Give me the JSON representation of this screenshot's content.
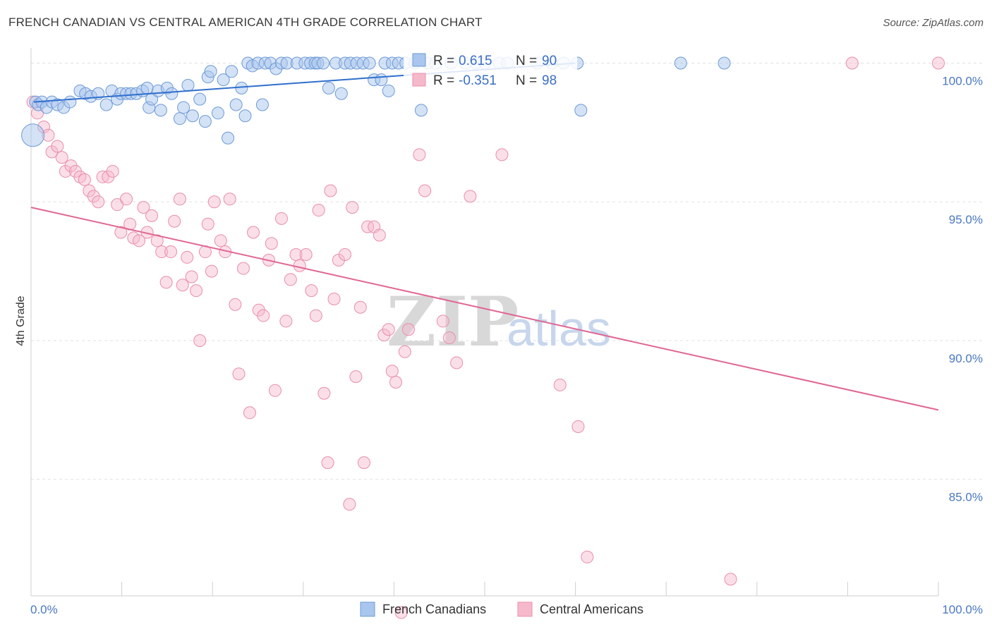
{
  "header": {
    "title": "FRENCH CANADIAN VS CENTRAL AMERICAN 4TH GRADE CORRELATION CHART",
    "source": "Source: ZipAtlas.com"
  },
  "colors": {
    "blue_fill": "#a9c6ee",
    "blue_stroke": "#6d9ad6",
    "blue_line": "#2f6fcd",
    "pink_fill": "#f6b9cc",
    "pink_stroke": "#e88eab",
    "pink_line": "#e06693",
    "tick_color": "#4a78c0"
  },
  "watermark": {
    "zip": "ZIP",
    "atlas": "atlas"
  },
  "stats": {
    "blue": {
      "r_label": "R =",
      "r_value": "0.615",
      "n_label": "N =",
      "n_value": "90"
    },
    "pink": {
      "r_label": "R =",
      "r_value": "-0.351",
      "n_label": "N =",
      "n_value": "98"
    }
  },
  "legend": {
    "items": [
      "French Canadians",
      "Central Americans"
    ]
  },
  "chart_data": {
    "type": "scatter",
    "title": "FRENCH CANADIAN VS CENTRAL AMERICAN 4TH GRADE CORRELATION CHART",
    "xlabel": "",
    "ylabel": "4th Grade",
    "xlim": [
      0,
      100
    ],
    "ylim": [
      80.8,
      100.8
    ],
    "x_tick_labels": [
      "0.0%",
      "100.0%"
    ],
    "y_ticks": [
      85,
      90,
      95,
      100
    ],
    "y_tick_labels": [
      "85.0%",
      "90.0%",
      "95.0%",
      "100.0%"
    ],
    "grid": true,
    "legend_position": "bottom-center",
    "series": [
      {
        "name": "French Canadians",
        "color": "#6d9ad6",
        "trend": {
          "x": [
            0.3,
            60
          ],
          "y": [
            98.6,
            100.0
          ]
        },
        "points": [
          [
            0.2,
            97.4
          ],
          [
            0.5,
            98.6
          ],
          [
            0.8,
            98.5
          ],
          [
            1.2,
            98.6
          ],
          [
            1.7,
            98.4
          ],
          [
            2.3,
            98.6
          ],
          [
            2.9,
            98.5
          ],
          [
            3.6,
            98.4
          ],
          [
            4.3,
            98.6
          ],
          [
            5.4,
            99.0
          ],
          [
            6.0,
            98.9
          ],
          [
            6.6,
            98.8
          ],
          [
            7.4,
            98.9
          ],
          [
            8.3,
            98.5
          ],
          [
            8.9,
            99.0
          ],
          [
            9.5,
            98.7
          ],
          [
            9.9,
            98.9
          ],
          [
            10.5,
            98.9
          ],
          [
            11.0,
            98.9
          ],
          [
            11.6,
            98.9
          ],
          [
            12.3,
            99.0
          ],
          [
            12.8,
            99.1
          ],
          [
            13.0,
            98.4
          ],
          [
            13.3,
            98.7
          ],
          [
            14.0,
            99.0
          ],
          [
            14.3,
            98.3
          ],
          [
            15.0,
            99.1
          ],
          [
            15.5,
            98.9
          ],
          [
            16.4,
            98.0
          ],
          [
            16.8,
            98.4
          ],
          [
            17.3,
            99.2
          ],
          [
            17.8,
            98.1
          ],
          [
            18.6,
            98.7
          ],
          [
            19.2,
            97.9
          ],
          [
            19.5,
            99.5
          ],
          [
            19.8,
            99.7
          ],
          [
            20.6,
            98.2
          ],
          [
            21.2,
            99.4
          ],
          [
            21.7,
            97.3
          ],
          [
            22.1,
            99.7
          ],
          [
            22.6,
            98.5
          ],
          [
            23.2,
            99.1
          ],
          [
            23.6,
            98.1
          ],
          [
            23.9,
            100.0
          ],
          [
            24.4,
            99.9
          ],
          [
            25.0,
            100.0
          ],
          [
            25.5,
            98.5
          ],
          [
            25.8,
            100.0
          ],
          [
            26.4,
            100.0
          ],
          [
            27.0,
            99.8
          ],
          [
            27.6,
            100.0
          ],
          [
            28.2,
            100.0
          ],
          [
            29.3,
            100.0
          ],
          [
            30.2,
            100.0
          ],
          [
            30.8,
            100.0
          ],
          [
            31.3,
            100.0
          ],
          [
            31.6,
            100.0
          ],
          [
            32.2,
            100.0
          ],
          [
            32.8,
            99.1
          ],
          [
            33.6,
            100.0
          ],
          [
            34.2,
            98.9
          ],
          [
            34.6,
            100.0
          ],
          [
            35.2,
            100.0
          ],
          [
            35.9,
            100.0
          ],
          [
            36.6,
            100.0
          ],
          [
            37.3,
            100.0
          ],
          [
            37.8,
            99.4
          ],
          [
            38.6,
            99.4
          ],
          [
            39.0,
            100.0
          ],
          [
            39.4,
            99.0
          ],
          [
            39.8,
            100.0
          ],
          [
            40.5,
            100.0
          ],
          [
            41.3,
            100.0
          ],
          [
            42.3,
            100.0
          ],
          [
            43.0,
            98.3
          ],
          [
            43.7,
            100.0
          ],
          [
            44.6,
            100.0
          ],
          [
            46.3,
            100.0
          ],
          [
            47.9,
            100.0
          ],
          [
            49.0,
            100.0
          ],
          [
            50.0,
            100.0
          ],
          [
            51.6,
            100.0
          ],
          [
            52.5,
            100.0
          ],
          [
            55.8,
            100.0
          ],
          [
            57.4,
            100.0
          ],
          [
            58.7,
            100.0
          ],
          [
            60.2,
            100.0
          ],
          [
            60.6,
            98.3
          ],
          [
            71.6,
            100.0
          ],
          [
            76.4,
            100.0
          ]
        ]
      },
      {
        "name": "Central Americans",
        "color": "#e88eab",
        "trend": {
          "x": [
            0,
            100
          ],
          "y": [
            94.8,
            87.5
          ]
        },
        "points": [
          [
            0.2,
            98.6
          ],
          [
            0.7,
            98.2
          ],
          [
            1.4,
            97.7
          ],
          [
            1.9,
            97.4
          ],
          [
            2.3,
            96.8
          ],
          [
            2.9,
            97.0
          ],
          [
            3.4,
            96.6
          ],
          [
            3.8,
            96.1
          ],
          [
            4.4,
            96.3
          ],
          [
            4.9,
            96.1
          ],
          [
            5.4,
            95.9
          ],
          [
            5.9,
            95.8
          ],
          [
            6.4,
            95.4
          ],
          [
            6.9,
            95.2
          ],
          [
            7.4,
            95.0
          ],
          [
            7.9,
            95.9
          ],
          [
            8.5,
            95.9
          ],
          [
            9.0,
            96.1
          ],
          [
            9.5,
            94.9
          ],
          [
            9.9,
            93.9
          ],
          [
            10.5,
            95.1
          ],
          [
            10.9,
            94.2
          ],
          [
            11.3,
            93.7
          ],
          [
            11.9,
            93.6
          ],
          [
            12.4,
            94.8
          ],
          [
            12.8,
            93.9
          ],
          [
            13.3,
            94.5
          ],
          [
            13.9,
            93.6
          ],
          [
            14.4,
            93.2
          ],
          [
            14.9,
            92.1
          ],
          [
            15.4,
            93.2
          ],
          [
            15.8,
            94.3
          ],
          [
            16.4,
            95.1
          ],
          [
            16.7,
            92.0
          ],
          [
            17.2,
            93.0
          ],
          [
            17.7,
            92.3
          ],
          [
            18.2,
            91.8
          ],
          [
            18.6,
            90.0
          ],
          [
            19.2,
            93.2
          ],
          [
            19.5,
            94.2
          ],
          [
            19.9,
            92.5
          ],
          [
            20.2,
            95.0
          ],
          [
            20.9,
            93.6
          ],
          [
            21.4,
            93.2
          ],
          [
            21.9,
            95.1
          ],
          [
            22.5,
            91.3
          ],
          [
            22.9,
            88.8
          ],
          [
            23.4,
            92.6
          ],
          [
            24.1,
            87.4
          ],
          [
            24.5,
            93.9
          ],
          [
            25.1,
            91.1
          ],
          [
            25.6,
            90.9
          ],
          [
            26.2,
            92.9
          ],
          [
            26.5,
            93.5
          ],
          [
            26.9,
            88.2
          ],
          [
            27.6,
            94.4
          ],
          [
            28.1,
            90.7
          ],
          [
            28.6,
            92.2
          ],
          [
            29.2,
            93.1
          ],
          [
            29.6,
            92.7
          ],
          [
            30.3,
            93.1
          ],
          [
            30.9,
            91.8
          ],
          [
            31.4,
            90.9
          ],
          [
            31.7,
            94.7
          ],
          [
            32.3,
            88.1
          ],
          [
            32.7,
            85.6
          ],
          [
            33.0,
            95.4
          ],
          [
            33.4,
            91.5
          ],
          [
            33.9,
            92.9
          ],
          [
            34.6,
            93.1
          ],
          [
            35.1,
            84.1
          ],
          [
            35.4,
            94.8
          ],
          [
            35.8,
            88.7
          ],
          [
            36.3,
            91.2
          ],
          [
            36.7,
            85.6
          ],
          [
            37.1,
            94.1
          ],
          [
            37.8,
            94.1
          ],
          [
            38.4,
            93.8
          ],
          [
            38.9,
            90.2
          ],
          [
            39.4,
            90.4
          ],
          [
            39.8,
            88.9
          ],
          [
            40.2,
            88.5
          ],
          [
            40.8,
            80.2
          ],
          [
            41.2,
            89.6
          ],
          [
            41.6,
            90.4
          ],
          [
            42.8,
            96.7
          ],
          [
            43.4,
            95.4
          ],
          [
            45.4,
            90.7
          ],
          [
            46.1,
            90.1
          ],
          [
            46.9,
            89.2
          ],
          [
            48.4,
            95.2
          ],
          [
            51.9,
            96.7
          ],
          [
            58.3,
            88.4
          ],
          [
            60.3,
            86.9
          ],
          [
            61.3,
            82.2
          ],
          [
            77.1,
            81.4
          ],
          [
            90.5,
            100.0
          ],
          [
            100.0,
            100.0
          ]
        ]
      }
    ]
  }
}
